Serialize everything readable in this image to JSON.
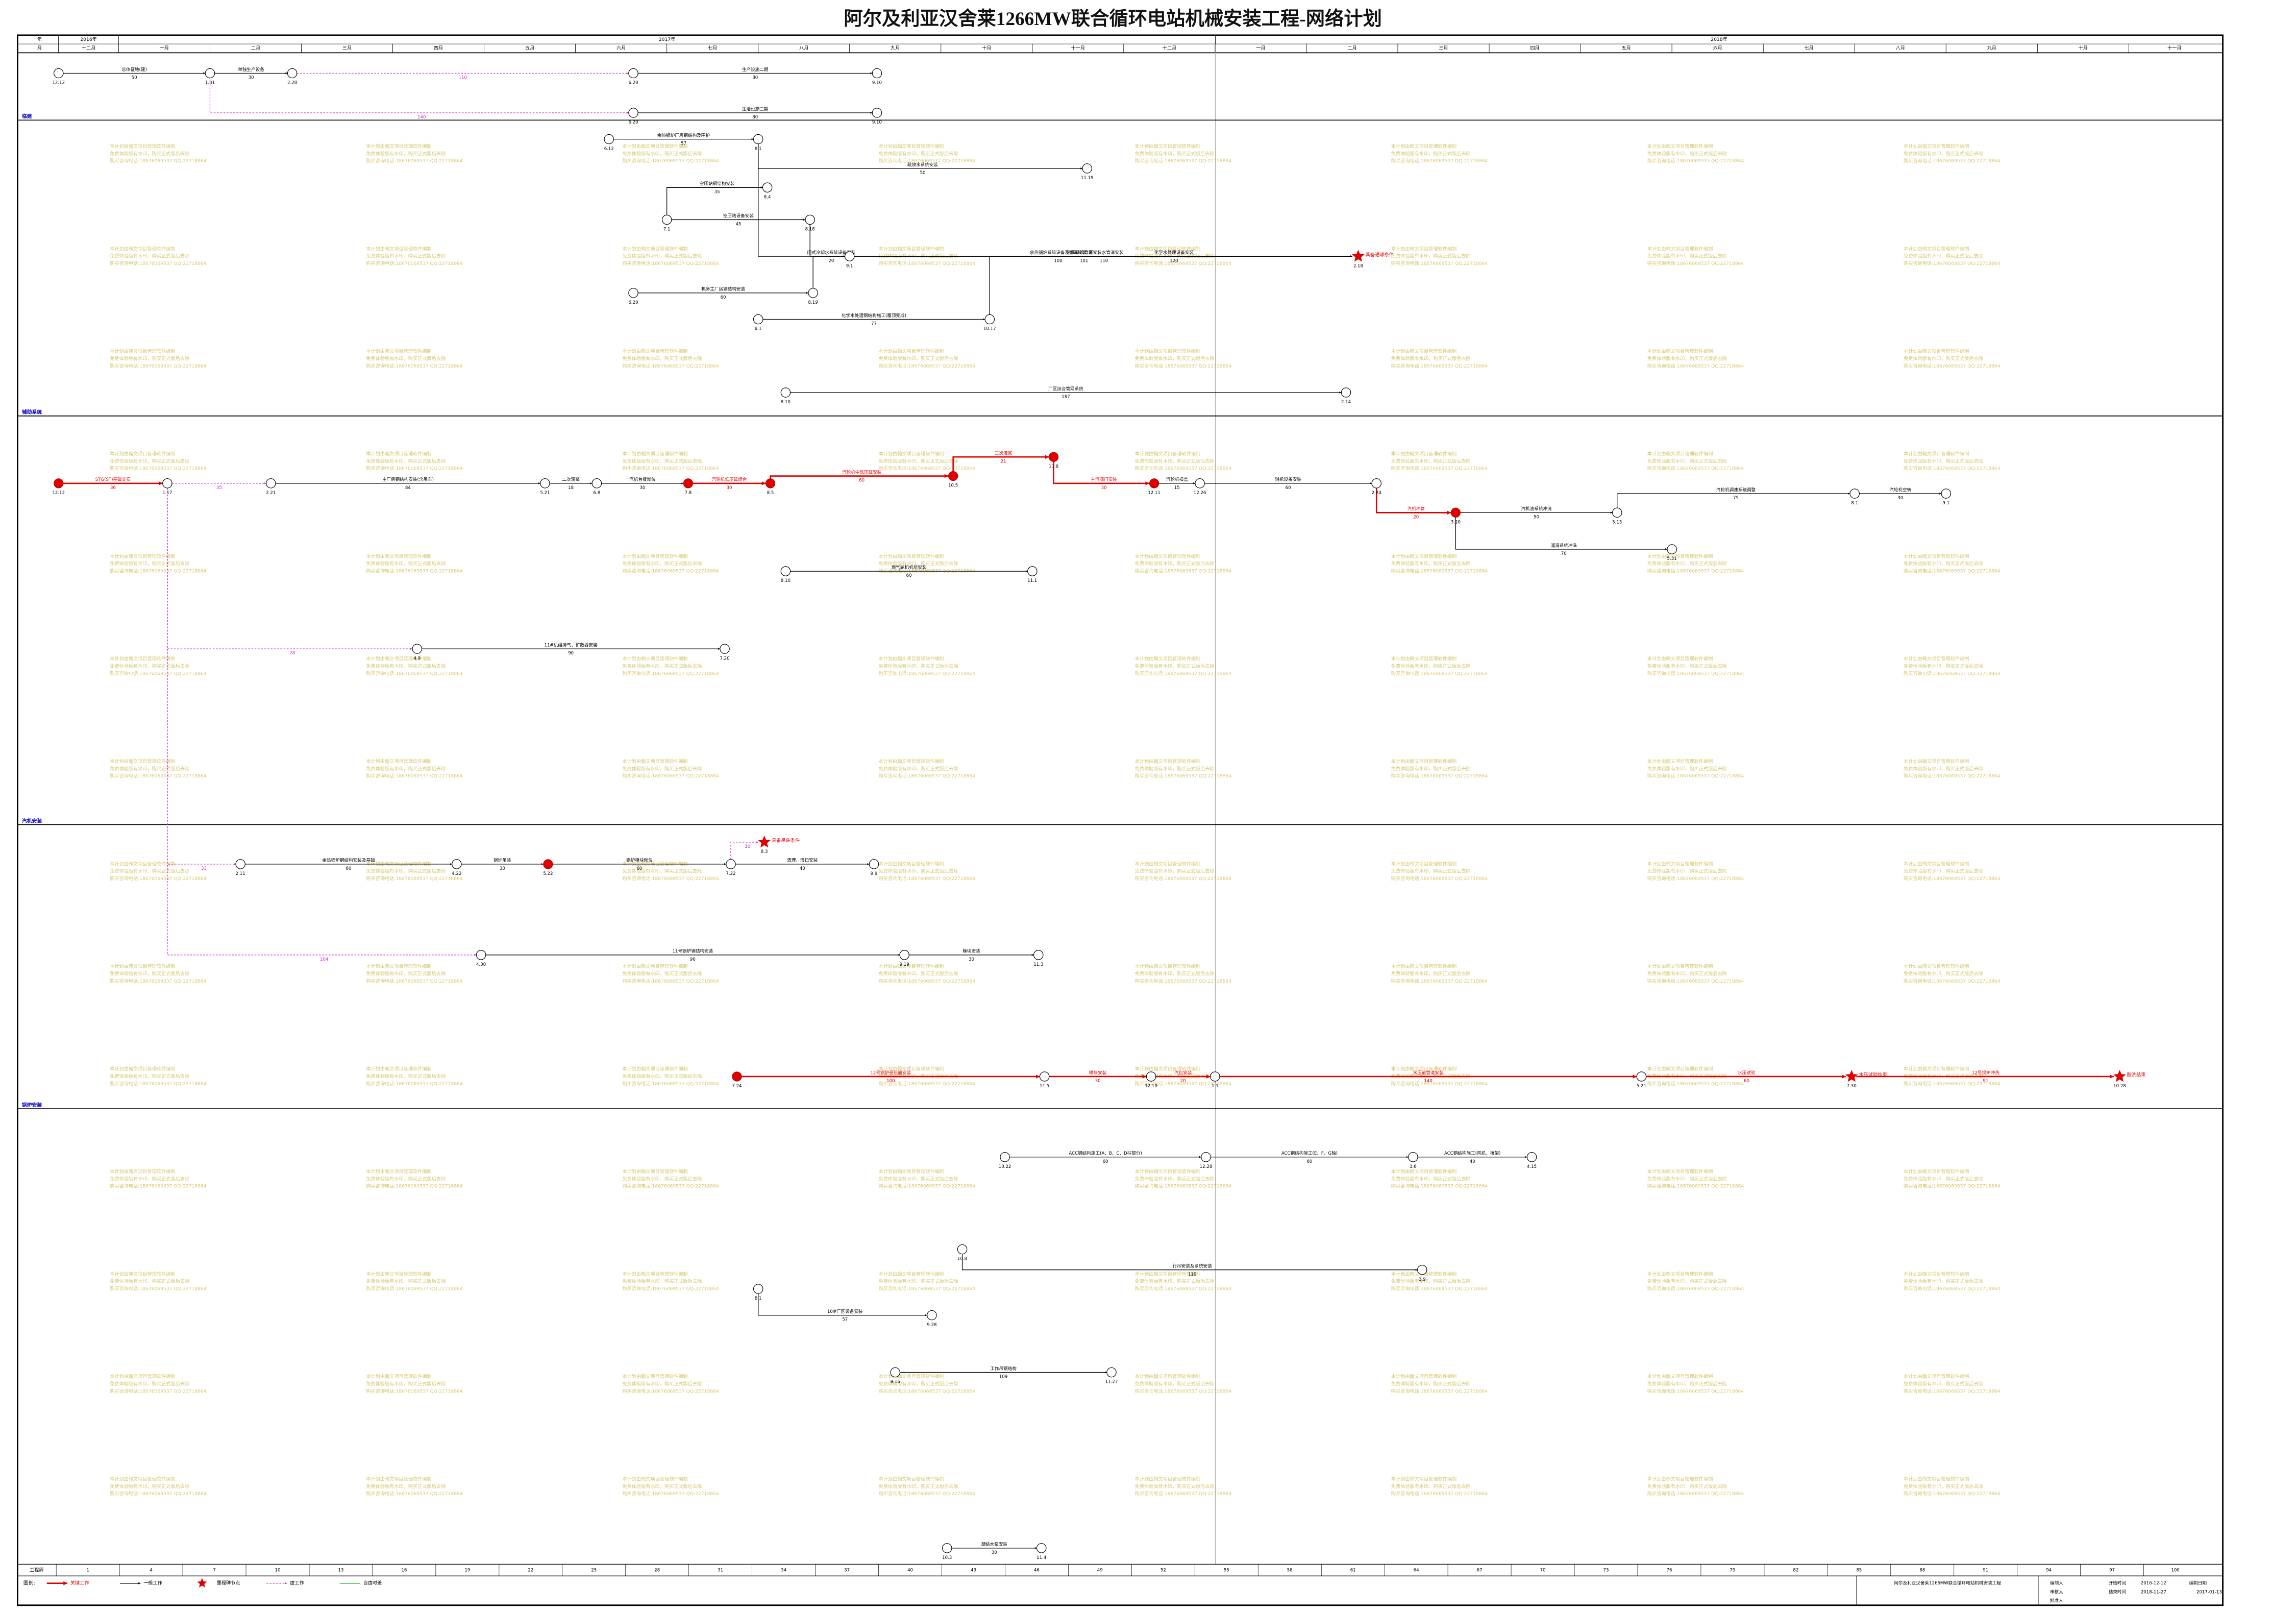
{
  "title": "阿尔及利亚汉舍莱1266MW联合循环电站机械安装工程-网络计划",
  "header": {
    "year_label": "年",
    "month_label": "月",
    "years": [
      "2016年",
      "2017年",
      "2018年"
    ],
    "months": [
      "十二月",
      "一月",
      "二月",
      "三月",
      "四月",
      "五月",
      "六月",
      "七月",
      "八月",
      "九月",
      "十月",
      "十一月",
      "十二月",
      "一月",
      "二月",
      "三月",
      "四月",
      "五月",
      "六月",
      "七月",
      "八月",
      "九月",
      "十月",
      "十一月"
    ]
  },
  "sections": [
    {
      "label": "临建"
    },
    {
      "label": "辅助系统"
    },
    {
      "label": "汽机安装"
    },
    {
      "label": "锅炉安装"
    }
  ],
  "nodes": [
    {
      "date": "12.12"
    },
    {
      "date": "1.31"
    },
    {
      "date": "2.28"
    },
    {
      "date": "6.20"
    },
    {
      "date": "9.10"
    },
    {
      "date": "6.20"
    },
    {
      "date": "9.10"
    },
    {
      "date": "6.12"
    },
    {
      "date": "8.1"
    },
    {
      "date": "11.19"
    },
    {
      "date": "7.1"
    },
    {
      "date": "8.4"
    },
    {
      "date": "8.18"
    },
    {
      "date": "2.18",
      "milestone": true,
      "label": "具备通球条件"
    },
    {
      "date": "6.20"
    },
    {
      "date": "8.19"
    },
    {
      "date": "9.1"
    },
    {
      "date": "8.1"
    },
    {
      "date": "10.17"
    },
    {
      "date": "8.10"
    },
    {
      "date": "2.14"
    },
    {
      "date": "12.12",
      "critical": true
    },
    {
      "date": "1.17"
    },
    {
      "date": "2.21"
    },
    {
      "date": "5.21"
    },
    {
      "date": "6.8"
    },
    {
      "date": "7.8",
      "critical": true
    },
    {
      "date": "8.5",
      "critical": true
    },
    {
      "date": "10.5",
      "critical": true
    },
    {
      "date": "11.8",
      "critical": true
    },
    {
      "date": "12.11",
      "critical": true
    },
    {
      "date": "12.26"
    },
    {
      "date": "2.24"
    },
    {
      "date": "3.20",
      "critical": true
    },
    {
      "date": "8.1"
    },
    {
      "date": "9.1"
    },
    {
      "date": "5.13"
    },
    {
      "date": "5.31"
    },
    {
      "date": "8.10"
    },
    {
      "date": "11.1"
    },
    {
      "date": "4.9"
    },
    {
      "date": "7.20"
    },
    {
      "date": "2.11"
    },
    {
      "date": "4.22"
    },
    {
      "date": "5.22",
      "critical": true
    },
    {
      "date": "7.22"
    },
    {
      "date": "9.9"
    },
    {
      "date": "8.3",
      "milestone": true,
      "label": "具备吊装条件"
    },
    {
      "date": "7.24",
      "critical": true
    },
    {
      "date": "11.5"
    },
    {
      "date": "12.10"
    },
    {
      "date": "1.1"
    },
    {
      "date": "5.21"
    },
    {
      "date": "7.30",
      "milestone": true,
      "label": "水压试验结束"
    },
    {
      "date": "10.28",
      "milestone": true,
      "label": "酸洗结束"
    },
    {
      "date": "4.30"
    },
    {
      "date": "9.19"
    },
    {
      "date": "11.3"
    },
    {
      "date": "10.22"
    },
    {
      "date": "12.28"
    },
    {
      "date": "3.6"
    },
    {
      "date": "4.15"
    },
    {
      "date": "10.8"
    },
    {
      "date": "3.9"
    },
    {
      "date": "8.1"
    },
    {
      "date": "9.28"
    },
    {
      "date": "9.16"
    },
    {
      "date": "11.27"
    },
    {
      "date": "10.3"
    },
    {
      "date": "11.4"
    }
  ],
  "activities": [
    {
      "from": 0,
      "to": 1,
      "name": "总体征地(建)",
      "duration": 50
    },
    {
      "from": 1,
      "to": 2,
      "name": "单独生产设备",
      "duration": 30
    },
    {
      "from": 2,
      "to": 3,
      "duration": 110,
      "dummy": true
    },
    {
      "from": 3,
      "to": 4,
      "name": "生产设施二期",
      "duration": 80
    },
    {
      "from": 5,
      "to": 6,
      "name": "生活设施二期",
      "duration": 80
    },
    {
      "from": 1,
      "to": 5,
      "duration": 140,
      "dummy": true
    },
    {
      "from": 7,
      "to": 8,
      "name": "余热锅炉厂房钢结构及围护",
      "duration": 57
    },
    {
      "from": 8,
      "to": 13,
      "name": "余热锅炉系统设备及管道安装",
      "duration": 100
    },
    {
      "from": 8,
      "to": 9,
      "name": "疏放水系统安装",
      "duration": 50
    },
    {
      "from": 10,
      "to": 11,
      "name": "空压站钢结构安装",
      "duration": 35
    },
    {
      "from": 10,
      "to": 12,
      "name": "空压站设备安装",
      "duration": 45
    },
    {
      "from": 12,
      "to": 13,
      "name": "空压系统管道安装",
      "duration": 101
    },
    {
      "from": 14,
      "to": 15,
      "name": "机务主厂房钢结构安装",
      "duration": 60
    },
    {
      "from": 15,
      "to": 16,
      "name": "闭式冷却水系统设备安装",
      "duration": 20
    },
    {
      "from": 16,
      "to": 13,
      "name": "厂区工业水管道安装",
      "duration": 110
    },
    {
      "from": 17,
      "to": 18,
      "name": "化学水处理钢结构施工(覆顶完成)",
      "duration": 77
    },
    {
      "from": 18,
      "to": 13,
      "name": "化学水处理设备安装",
      "duration": 120
    },
    {
      "from": 19,
      "to": 20,
      "name": "厂区综合管网系统",
      "duration": 187
    },
    {
      "from": 21,
      "to": 22,
      "name": "STG(ST)基础交安",
      "duration": 36,
      "critical": true
    },
    {
      "from": 22,
      "to": 23,
      "duration": 35,
      "dummy": true
    },
    {
      "from": 23,
      "to": 24,
      "name": "主厂房钢结构安装(含吊车)",
      "duration": 84
    },
    {
      "from": 24,
      "to": 25,
      "name": "二次灌浆",
      "duration": 18
    },
    {
      "from": 25,
      "to": 26,
      "name": "汽机台板就位",
      "duration": 30
    },
    {
      "from": 26,
      "to": 27,
      "name": "汽轮机低压缸组合",
      "duration": 30,
      "critical": true
    },
    {
      "from": 27,
      "to": 28,
      "name": "汽轮机中低压缸安装",
      "duration": 60,
      "critical": true
    },
    {
      "from": 28,
      "to": 29,
      "name": "二次灌浆",
      "duration": 21,
      "critical": true
    },
    {
      "from": 29,
      "to": 30,
      "name": "主汽阀门安装",
      "duration": 30,
      "critical": true
    },
    {
      "from": 30,
      "to": 31,
      "name": "汽轮机扣盖",
      "duration": 15
    },
    {
      "from": 31,
      "to": 32,
      "name": "辅机设备安装",
      "duration": 60
    },
    {
      "from": 32,
      "to": 33,
      "name": "汽机冲管",
      "duration": 20,
      "critical": true
    },
    {
      "from": 33,
      "to": 36,
      "name": "汽机油系统冲洗",
      "duration": 50
    },
    {
      "from": 36,
      "to": 34,
      "name": "汽轮机调速系统调整",
      "duration": 75
    },
    {
      "from": 34,
      "to": 35,
      "name": "汽轮机空转",
      "duration": 30
    },
    {
      "from": 33,
      "to": 37,
      "name": "润滑系统冲洗",
      "duration": 70
    },
    {
      "from": 38,
      "to": 39,
      "name": "燃气轮机机组安装",
      "duration": 60
    },
    {
      "from": 40,
      "to": 41,
      "name": "11#机组排气、扩散器安装",
      "duration": 90
    },
    {
      "from": 22,
      "to": 40,
      "duration": 78,
      "dummy": true
    },
    {
      "from": 42,
      "to": 43,
      "name": "余热锅炉钢结构安装及基础",
      "duration": 60
    },
    {
      "from": 43,
      "to": 44,
      "name": "锅炉吊装",
      "duration": 30
    },
    {
      "from": 44,
      "to": 45,
      "name": "锅炉模块就位",
      "duration": 60
    },
    {
      "from": 45,
      "to": 46,
      "name": "清理、清扫安装",
      "duration": 40
    },
    {
      "from": 22,
      "to": 42,
      "duration": 33,
      "dummy": true
    },
    {
      "from": 45,
      "to": 47,
      "duration": 10,
      "dummy": true
    },
    {
      "from": 48,
      "to": 49,
      "name": "12号锅炉受热面安装",
      "duration": 100,
      "critical": true
    },
    {
      "from": 49,
      "to": 50,
      "name": "模块安装",
      "duration": 30,
      "critical": true
    },
    {
      "from": 50,
      "to": 51,
      "name": "汽包安装",
      "duration": 20,
      "critical": true
    },
    {
      "from": 51,
      "to": 52,
      "name": "水压前管道安装",
      "duration": 140,
      "critical": true
    },
    {
      "from": 52,
      "to": 53,
      "name": "水压试验",
      "duration": 60,
      "critical": true
    },
    {
      "from": 53,
      "to": 54,
      "name": "12号锅炉冲洗",
      "duration": 91,
      "critical": true
    },
    {
      "from": 22,
      "to": 55,
      "duration": 104,
      "dummy": true
    },
    {
      "from": 55,
      "to": 56,
      "name": "11号锅炉钢结构安装",
      "duration": 90
    },
    {
      "from": 56,
      "to": 57,
      "name": "模块安装",
      "duration": 30
    },
    {
      "from": 58,
      "to": 59,
      "name": "ACC钢结构施工(A、B、C、D柱部分)",
      "duration": 60
    },
    {
      "from": 59,
      "to": 60,
      "name": "ACC钢结构施工(E、F、G轴)",
      "duration": 60
    },
    {
      "from": 60,
      "to": 61,
      "name": "ACC钢结构施工(风机、桥架)",
      "duration": 40
    },
    {
      "from": 62,
      "to": 63,
      "name": "行吊安装及系统安装",
      "duration": 110
    },
    {
      "from": 64,
      "to": 65,
      "name": "10#厂区设备安装",
      "duration": 57
    },
    {
      "from": 66,
      "to": 67,
      "name": "工作吊钢结构",
      "duration": 109
    },
    {
      "from": 68,
      "to": 69,
      "name": "凝结水泵安装",
      "duration": 30
    }
  ],
  "weeks": {
    "label": "工程周",
    "numbers": [
      1,
      4,
      7,
      10,
      13,
      16,
      19,
      22,
      25,
      28,
      31,
      34,
      37,
      40,
      43,
      46,
      49,
      52,
      55,
      58,
      61,
      64,
      67,
      70,
      73,
      76,
      79,
      82,
      85,
      88,
      91,
      94,
      97,
      100
    ]
  },
  "legend": {
    "title": "图例:",
    "items": [
      "关键工作",
      "一般工作",
      "里程碑节点",
      "虚工作",
      "自由时差"
    ]
  },
  "footer": {
    "project": "阿尔及利亚汉舍莱1266MW联合循环电站机械安装工程",
    "cells": [
      "编制人",
      "审核人",
      "批准人",
      "开始时间",
      "2016-12-12",
      "结束时间",
      "2018-11-27",
      "编制日期",
      "2017-01-13"
    ]
  },
  "watermark": [
    "本计划由翰文项目管理软件编制",
    "免费体验版有水印，购买正式版后去除",
    "购买咨询电话:18676069537 QQ:22718864"
  ]
}
